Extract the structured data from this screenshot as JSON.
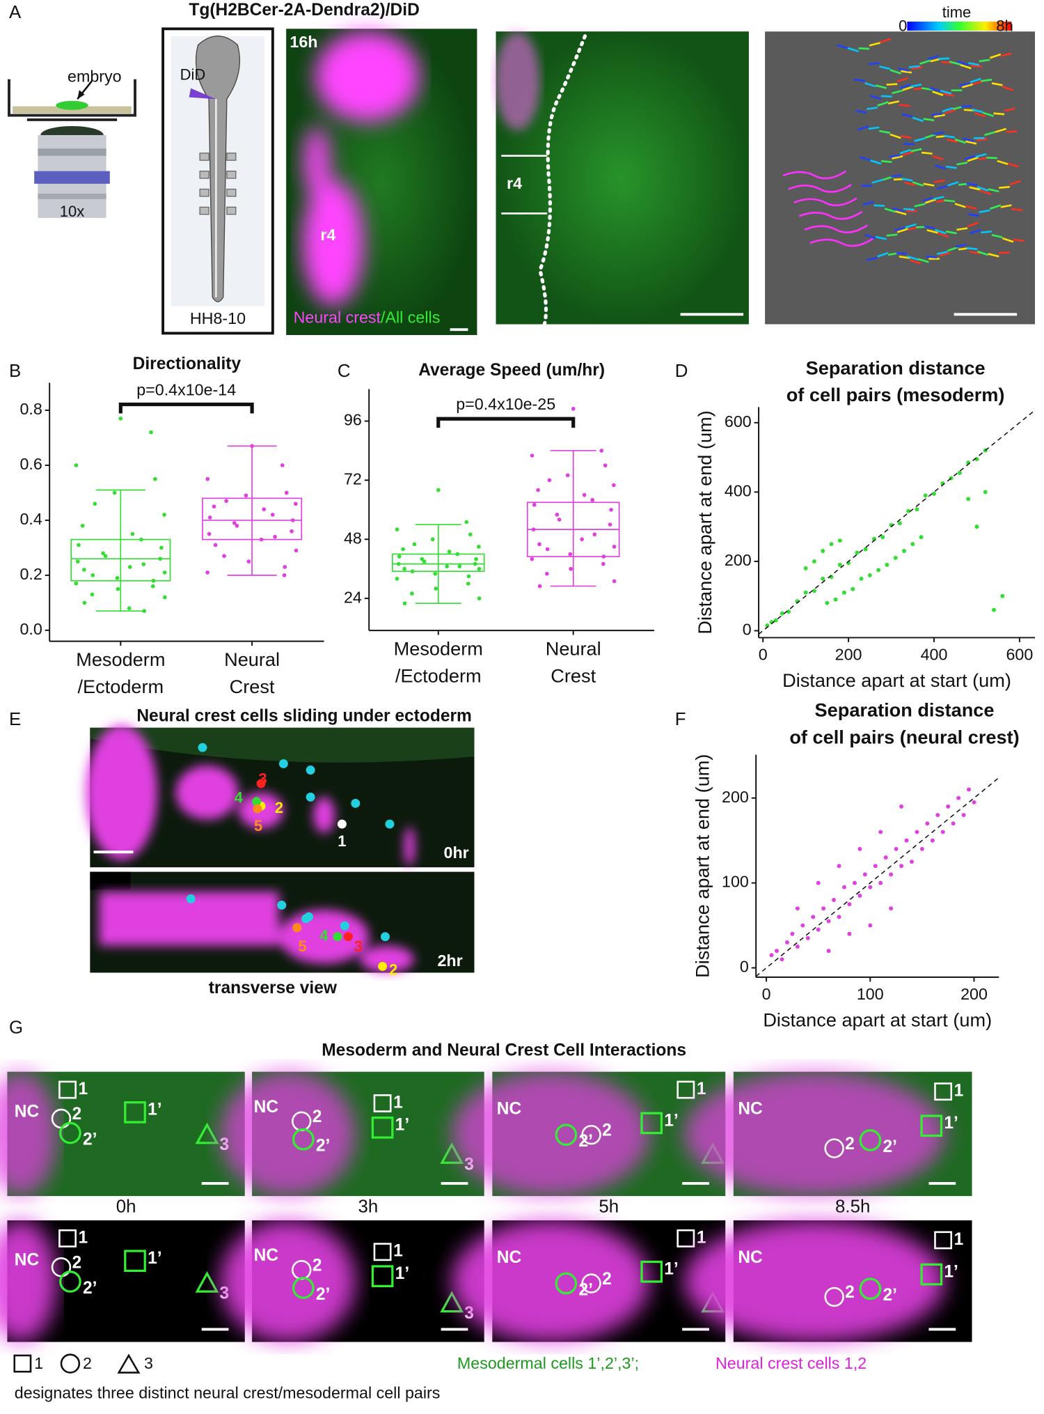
{
  "panel_labels": {
    "a": "A",
    "b": "B",
    "c": "C",
    "d": "D",
    "e": "E",
    "f": "F",
    "g": "G"
  },
  "panel_a": {
    "title": "Tg(H2BCer-2A-Dendra2)/DiD",
    "embryo": "embryo",
    "objective": "10x",
    "did": "DiD",
    "stage": "HH8-10",
    "time": "16h",
    "r4": "r4",
    "legend": [
      "Neural crest",
      "/All cells"
    ],
    "colorbar": {
      "label": "time",
      "min": "0",
      "max": "8h"
    }
  },
  "panel_e": {
    "title": "Neural crest cells sliding under ectoderm",
    "cells": [
      {
        "label": "1",
        "color": "#ffffff"
      },
      {
        "label": "2",
        "color": "#ffee00"
      },
      {
        "label": "3",
        "color": "#ff2020"
      },
      {
        "label": "4",
        "color": "#33dd33"
      },
      {
        "label": "5",
        "color": "#ff8c1a"
      }
    ],
    "time_top": "0hr",
    "time_bottom": "2hr",
    "caption": "transverse view"
  },
  "panel_g": {
    "title": "Mesoderm and Neural Crest Cell Interactions",
    "times": [
      "0h",
      "3h",
      "5h",
      "8.5h"
    ],
    "labels": {
      "nc": "NC",
      "c1": "1",
      "m1": "1’",
      "c2": "2",
      "m2": "2’",
      "m3": "3"
    },
    "legend": {
      "k1": "1",
      "k2": "2",
      "k3": "3",
      "meso": "Mesodermal cells 1’,2’,3’;",
      "nc": "Neural crest cells 1,2",
      "note": "designates three distinct neural crest/mesodermal cell pairs"
    }
  },
  "chart_data": [
    {
      "type": "box",
      "title": "Directionality",
      "annotation": "p=0.4x10e-14",
      "categories": [
        [
          "Mesoderm",
          "/Ectoderm"
        ],
        [
          "Neural",
          "Crest"
        ]
      ],
      "ylim": [
        -0.04,
        0.9
      ],
      "yticks": [
        {
          "value": 0,
          "label": "0.0"
        },
        0.2,
        0.4,
        0.6,
        0.8
      ],
      "boxes": [
        {
          "color": "#33dd33",
          "low": 0.07,
          "q1": 0.18,
          "median": 0.26,
          "q3": 0.33,
          "high": 0.51,
          "points": [
            0.77,
            0.72,
            0.6,
            0.55,
            0.5,
            0.46,
            0.42,
            0.38,
            0.35,
            0.33,
            0.31,
            0.3,
            0.28,
            0.27,
            0.26,
            0.25,
            0.24,
            0.23,
            0.22,
            0.21,
            0.2,
            0.19,
            0.18,
            0.17,
            0.16,
            0.15,
            0.13,
            0.12,
            0.1,
            0.08,
            0.07
          ]
        },
        {
          "color": "#e040e0",
          "low": 0.2,
          "q1": 0.33,
          "median": 0.4,
          "q3": 0.48,
          "high": 0.67,
          "points": [
            0.67,
            0.6,
            0.55,
            0.5,
            0.49,
            0.47,
            0.46,
            0.45,
            0.44,
            0.42,
            0.41,
            0.4,
            0.39,
            0.38,
            0.36,
            0.35,
            0.34,
            0.33,
            0.31,
            0.29,
            0.27,
            0.25,
            0.23,
            0.21,
            0.2
          ]
        }
      ]
    },
    {
      "type": "box",
      "title": "Average Speed (um/hr)",
      "annotation": "p=0.4x10e-25",
      "categories": [
        [
          "Mesoderm",
          "/Ectoderm"
        ],
        [
          "Neural",
          "Crest"
        ]
      ],
      "ylim": [
        11,
        109
      ],
      "yticks": [
        24,
        48,
        72,
        96
      ],
      "boxes": [
        {
          "color": "#33dd33",
          "low": 22,
          "q1": 35,
          "median": 38,
          "q3": 42,
          "high": 54,
          "points": [
            68,
            55,
            52,
            50,
            48,
            46,
            45,
            44,
            43,
            42,
            41,
            40,
            40,
            39,
            38,
            38,
            37,
            37,
            36,
            36,
            35,
            34,
            33,
            32,
            30,
            28,
            26,
            24,
            22
          ]
        },
        {
          "color": "#e040e0",
          "low": 29,
          "q1": 41,
          "median": 52,
          "q3": 63,
          "high": 84,
          "points": [
            101,
            84,
            82,
            78,
            74,
            72,
            70,
            68,
            66,
            64,
            62,
            60,
            58,
            56,
            54,
            52,
            50,
            48,
            46,
            45,
            44,
            42,
            41,
            40,
            38,
            36,
            34,
            31,
            29
          ]
        }
      ]
    },
    {
      "type": "scatter",
      "title": [
        "Separation distance",
        "of cell pairs (mesoderm)"
      ],
      "x_label": "Distance apart at start (um)",
      "y_label": "Distance apart at end (um)",
      "xlim": [
        -10,
        636
      ],
      "ylim": [
        -20,
        645
      ],
      "xticks": [
        0,
        200,
        400,
        600
      ],
      "yticks": [
        0,
        200,
        400,
        600
      ],
      "diagonal": true,
      "series": [
        {
          "color": "#33dd33",
          "x": [
            10,
            20,
            30,
            45,
            60,
            80,
            100,
            120,
            140,
            160,
            180,
            200,
            220,
            240,
            260,
            280,
            300,
            320,
            340,
            360,
            380,
            400,
            420,
            440,
            460,
            480,
            500,
            520,
            150,
            170,
            190,
            210,
            230,
            250,
            270,
            290,
            310,
            330,
            350,
            370,
            100,
            120,
            140,
            160,
            180,
            480,
            500,
            520,
            540,
            560
          ],
          "y": [
            15,
            25,
            30,
            50,
            55,
            85,
            110,
            115,
            150,
            155,
            190,
            195,
            225,
            235,
            265,
            270,
            305,
            310,
            345,
            350,
            390,
            395,
            425,
            440,
            455,
            485,
            495,
            520,
            80,
            90,
            110,
            120,
            150,
            160,
            175,
            190,
            210,
            230,
            250,
            270,
            180,
            200,
            230,
            250,
            260,
            380,
            300,
            400,
            60,
            100
          ]
        }
      ]
    },
    {
      "type": "scatter",
      "title": [
        "Separation distance",
        "of cell pairs (neural crest)"
      ],
      "x_label": "Distance apart at start (um)",
      "y_label": "Distance apart at end (um)",
      "xlim": [
        -10,
        224
      ],
      "ylim": [
        -11,
        251
      ],
      "xticks": [
        0,
        100,
        200
      ],
      "yticks": [
        0,
        100,
        200
      ],
      "diagonal": true,
      "series": [
        {
          "color": "#e040e0",
          "x": [
            5,
            10,
            15,
            20,
            25,
            30,
            35,
            40,
            45,
            50,
            55,
            60,
            65,
            70,
            75,
            80,
            85,
            90,
            95,
            100,
            105,
            110,
            115,
            120,
            125,
            130,
            135,
            140,
            145,
            150,
            155,
            160,
            165,
            170,
            175,
            180,
            185,
            190,
            195,
            200,
            30,
            50,
            70,
            90,
            110,
            130,
            60,
            80,
            100,
            120
          ],
          "y": [
            15,
            20,
            10,
            30,
            40,
            25,
            50,
            35,
            60,
            45,
            70,
            55,
            80,
            60,
            95,
            75,
            100,
            85,
            110,
            95,
            120,
            100,
            130,
            110,
            140,
            120,
            150,
            125,
            160,
            140,
            170,
            150,
            180,
            160,
            190,
            170,
            200,
            180,
            210,
            195,
            70,
            100,
            120,
            140,
            160,
            190,
            20,
            40,
            50,
            70
          ]
        }
      ]
    }
  ]
}
